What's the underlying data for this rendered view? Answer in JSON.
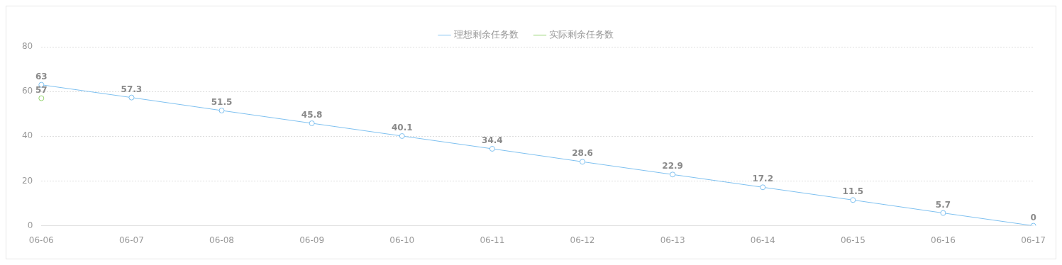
{
  "chart_data": {
    "type": "line",
    "categories": [
      "06-06",
      "06-07",
      "06-08",
      "06-09",
      "06-10",
      "06-11",
      "06-12",
      "06-13",
      "06-14",
      "06-15",
      "06-16",
      "06-17"
    ],
    "series": [
      {
        "name": "理想剩余任务数",
        "color": "#7fc1f0",
        "values": [
          63,
          57.3,
          51.5,
          45.8,
          40.1,
          34.4,
          28.6,
          22.9,
          17.2,
          11.5,
          5.7,
          0
        ]
      },
      {
        "name": "实际剩余任务数",
        "color": "#91d26b",
        "values": [
          57,
          null,
          null,
          null,
          null,
          null,
          null,
          null,
          null,
          null,
          null,
          null
        ]
      }
    ],
    "ylim": [
      0,
      80
    ],
    "yticks": [
      0,
      20,
      40,
      60,
      80
    ],
    "grid": "y",
    "legend": "top",
    "marker": "circle",
    "line_style": "solid",
    "data_labels": true
  }
}
